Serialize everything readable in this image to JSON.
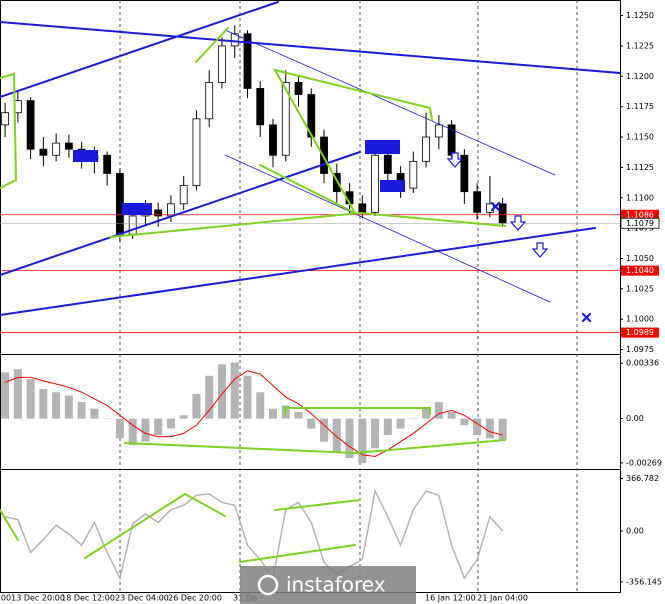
{
  "watermark": "instaforex",
  "chart_data": [
    {
      "type": "candlestick",
      "open": [
        1.116,
        1.117,
        1.118,
        1.114,
        1.1135,
        1.1145,
        1.114,
        1.1132,
        1.1135,
        1.112,
        1.107,
        1.1085,
        1.109,
        1.1085,
        1.1095,
        1.111,
        1.1165,
        1.1195,
        1.1225,
        1.1235,
        1.119,
        1.116,
        1.1135,
        1.1195,
        1.1185,
        1.115,
        1.112,
        1.1105,
        1.1095,
        1.1088,
        1.1135,
        1.112,
        1.1108,
        1.113,
        1.115,
        1.116,
        1.1135,
        1.1105,
        1.1088,
        1.1095
      ],
      "high": [
        1.1178,
        1.1188,
        1.1183,
        1.115,
        1.1153,
        1.1152,
        1.1146,
        1.1142,
        1.1138,
        1.1124,
        1.1092,
        1.1098,
        1.1096,
        1.1102,
        1.1118,
        1.1172,
        1.1205,
        1.1232,
        1.1242,
        1.1238,
        1.1196,
        1.1165,
        1.1205,
        1.12,
        1.119,
        1.1156,
        1.1128,
        1.1112,
        1.1102,
        1.1142,
        1.114,
        1.1126,
        1.1138,
        1.117,
        1.1168,
        1.1164,
        1.114,
        1.1112,
        1.1118,
        1.11
      ],
      "low": [
        1.115,
        1.1162,
        1.1132,
        1.1126,
        1.113,
        1.1133,
        1.1124,
        1.112,
        1.111,
        1.1064,
        1.1066,
        1.1078,
        1.1076,
        1.108,
        1.109,
        1.1106,
        1.1158,
        1.119,
        1.1215,
        1.1182,
        1.115,
        1.1125,
        1.113,
        1.1175,
        1.1142,
        1.1112,
        1.1096,
        1.1086,
        1.1083,
        1.1085,
        1.1105,
        1.11,
        1.1104,
        1.1125,
        1.114,
        1.1128,
        1.1095,
        1.1082,
        1.1084,
        1.1076
      ],
      "close": [
        1.117,
        1.118,
        1.114,
        1.1135,
        1.1145,
        1.114,
        1.1132,
        1.1135,
        1.112,
        1.107,
        1.1085,
        1.109,
        1.1085,
        1.1095,
        1.111,
        1.1165,
        1.1195,
        1.1225,
        1.1235,
        1.119,
        1.116,
        1.1135,
        1.1195,
        1.1185,
        1.115,
        1.112,
        1.1105,
        1.1095,
        1.1088,
        1.1135,
        1.112,
        1.1108,
        1.113,
        1.115,
        1.116,
        1.1135,
        1.1105,
        1.1088,
        1.1095,
        1.1079
      ],
      "up_color": "#ffffff",
      "down_color": "#000000",
      "xlim": [
        -0.4,
        48.2
      ],
      "xticks": [
        {
          "value": 0.07,
          "label": "00"
        },
        {
          "value": 2.58,
          "label": "13 Dec 20:00"
        },
        {
          "value": 6.5,
          "label": "18 Dec 12:00"
        },
        {
          "value": 10.73,
          "label": "23 Dec 04:00"
        },
        {
          "value": 14.89,
          "label": "26 Dec 20:00"
        },
        {
          "value": 18.8,
          "label": "31 De"
        },
        {
          "value": 34.9,
          "label": "16 Jan 12:00"
        },
        {
          "value": 39.0,
          "label": "21 Jan 04:00"
        }
      ],
      "ylim": [
        1.0973,
        1.1262
      ],
      "yticks": [
        {
          "value": 1.125,
          "label": "1.1250"
        },
        {
          "value": 1.1225,
          "label": "1.1225"
        },
        {
          "value": 1.12,
          "label": "1.1200"
        },
        {
          "value": 1.1175,
          "label": "1.1175"
        },
        {
          "value": 1.115,
          "label": "1.1150"
        },
        {
          "value": 1.1125,
          "label": "1.1125"
        },
        {
          "value": 1.11,
          "label": "1.1100"
        },
        {
          "value": 1.1075,
          "label": "1.1075"
        },
        {
          "value": 1.105,
          "label": "1.1050"
        },
        {
          "value": 1.1025,
          "label": "1.1025"
        },
        {
          "value": 1.1,
          "label": "1.1000"
        },
        {
          "value": 1.0975,
          "label": "1.0975"
        }
      ],
      "levels": [
        1.1086,
        {
          "value": 1.104,
          "label": "1.1040"
        },
        1.0989
      ],
      "level_color": "#ff0000",
      "last_price": 1.1079
    },
    {
      "type": "macd",
      "histogram": [
        0.0028,
        0.003,
        0.0024,
        0.0018,
        0.0016,
        0.0014,
        0.001,
        0.0006,
        0.0,
        -0.0012,
        -0.0016,
        -0.0014,
        -0.001,
        -0.0006,
        0.0002,
        0.0015,
        0.0026,
        0.0033,
        0.0034,
        0.0026,
        0.0016,
        0.0006,
        0.0008,
        0.0004,
        -0.0006,
        -0.0014,
        -0.002,
        -0.0024,
        -0.0027,
        -0.0018,
        -0.001,
        -0.0006,
        0.0,
        0.0006,
        0.001,
        0.0004,
        -0.0004,
        -0.001,
        -0.0012,
        -0.0013
      ],
      "signal": [
        0.0022,
        0.0025,
        0.0025,
        0.0023,
        0.0021,
        0.0019,
        0.0016,
        0.0012,
        0.0008,
        0.0002,
        -0.0004,
        -0.0009,
        -0.0011,
        -0.0011,
        -0.0009,
        -0.0004,
        0.0005,
        0.0015,
        0.0024,
        0.0029,
        0.0027,
        0.002,
        0.0013,
        0.0009,
        0.0003,
        -0.0004,
        -0.0011,
        -0.0017,
        -0.0022,
        -0.0023,
        -0.0019,
        -0.0014,
        -0.0009,
        -0.0003,
        0.0003,
        0.0005,
        0.0002,
        -0.0003,
        -0.0008,
        -0.001
      ],
      "histogram_color": "#b4b4b4",
      "signal_color": "#ff0000",
      "xlim": [
        -0.4,
        48.2
      ],
      "ylim": [
        -0.003,
        0.0038
      ],
      "yticks": [
        0.00336,
        {
          "value": 0,
          "label": "0.00"
        },
        -0.00269
      ]
    },
    {
      "type": "line",
      "values": [
        100,
        80,
        -150,
        -60,
        40,
        -20,
        -100,
        60,
        -150,
        -330,
        50,
        120,
        60,
        150,
        180,
        250,
        260,
        200,
        180,
        -100,
        -200,
        -330,
        150,
        200,
        60,
        -220,
        -300,
        -250,
        -200,
        280,
        100,
        -100,
        150,
        280,
        250,
        -100,
        -330,
        -200,
        100,
        0
      ],
      "color": "#b4b4b4",
      "xlim": [
        -0.4,
        48.2
      ],
      "ylim": [
        -420,
        420
      ],
      "yticks": [
        366.782,
        {
          "value": 0,
          "label": "0.00"
        },
        -356.145
      ]
    }
  ]
}
